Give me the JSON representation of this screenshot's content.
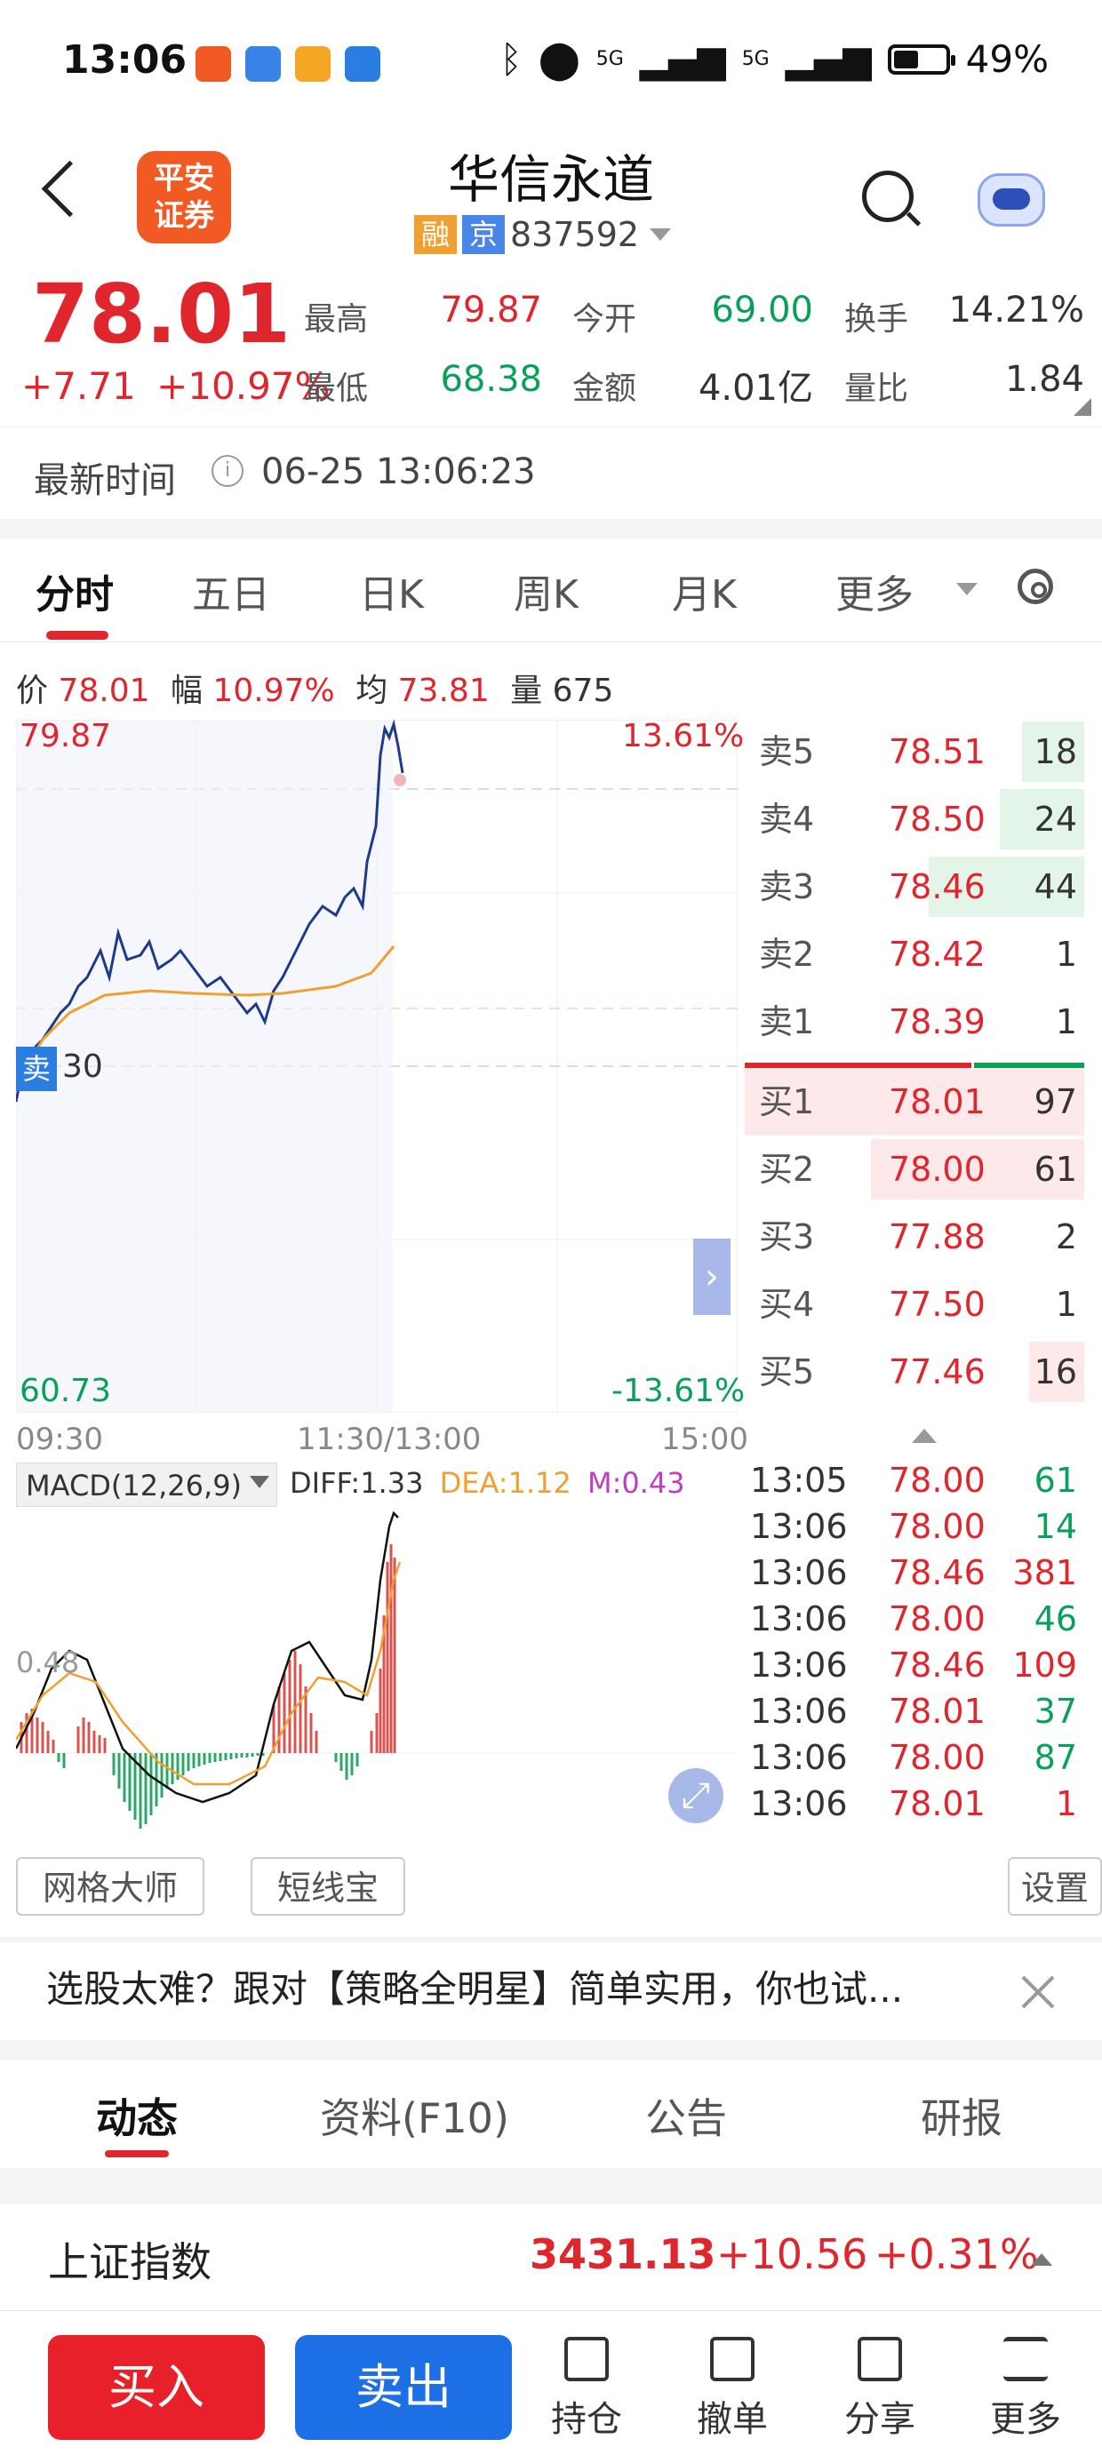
{
  "status_bar": {
    "time": "13:06",
    "signal1": "5G",
    "signal2": "5G",
    "battery": "49%",
    "battery_fraction": 0.49
  },
  "header": {
    "logo_line1": "平安",
    "logo_line2": "证券",
    "stock_name": "华信永道",
    "tag1": "融",
    "tag2": "京",
    "code": "837592"
  },
  "quote": {
    "price": "78.01",
    "change": "+7.71",
    "change_pct": "+10.97%",
    "high_label": "最高",
    "high": "79.87",
    "open_label": "今开",
    "open": "69.00",
    "turnover_label": "换手",
    "turnover": "14.21%",
    "low_label": "最低",
    "low": "68.38",
    "amount_label": "金额",
    "amount": "4.01亿",
    "vol_ratio_label": "量比",
    "vol_ratio": "1.84"
  },
  "update": {
    "label": "最新时间",
    "time": "06-25 13:06:23"
  },
  "kline_tabs": [
    "分时",
    "五日",
    "日K",
    "周K",
    "月K",
    "更多"
  ],
  "chart_info": {
    "price_label": "价",
    "price": "78.01",
    "range_label": "幅",
    "range": "10.97%",
    "avg_label": "均",
    "avg": "73.81",
    "vol_label": "量",
    "vol": "675"
  },
  "chart_labels": {
    "top_price": "79.87",
    "top_pct": "13.61%",
    "bottom_price": "60.73",
    "bottom_pct": "-13.61%",
    "mid_value": "30",
    "sell_tag": "卖",
    "t_start": "09:30",
    "t_mid": "11:30/13:00",
    "t_end": "15:00"
  },
  "order_book": {
    "sells": [
      {
        "name": "卖5",
        "price": "78.51",
        "vol": "18"
      },
      {
        "name": "卖4",
        "price": "78.50",
        "vol": "24"
      },
      {
        "name": "卖3",
        "price": "78.46",
        "vol": "44"
      },
      {
        "name": "卖2",
        "price": "78.42",
        "vol": "1"
      },
      {
        "name": "卖1",
        "price": "78.39",
        "vol": "1"
      }
    ],
    "buys": [
      {
        "name": "买1",
        "price": "78.01",
        "vol": "97"
      },
      {
        "name": "买2",
        "price": "78.00",
        "vol": "61"
      },
      {
        "name": "买3",
        "price": "77.88",
        "vol": "2"
      },
      {
        "name": "买4",
        "price": "77.50",
        "vol": "1"
      },
      {
        "name": "买5",
        "price": "77.46",
        "vol": "16"
      }
    ]
  },
  "macd": {
    "label": "MACD(12,26,9)",
    "diff": "DIFF:1.33",
    "dea": "DEA:1.12",
    "m": "M:0.43",
    "side_value": "0.48"
  },
  "ticks": [
    {
      "time": "13:05",
      "price": "78.00",
      "vol": "61",
      "dir": "g"
    },
    {
      "time": "13:06",
      "price": "78.00",
      "vol": "14",
      "dir": "g"
    },
    {
      "time": "13:06",
      "price": "78.46",
      "vol": "381",
      "dir": "r"
    },
    {
      "time": "13:06",
      "price": "78.00",
      "vol": "46",
      "dir": "g"
    },
    {
      "time": "13:06",
      "price": "78.46",
      "vol": "109",
      "dir": "r"
    },
    {
      "time": "13:06",
      "price": "78.01",
      "vol": "37",
      "dir": "g"
    },
    {
      "time": "13:06",
      "price": "78.00",
      "vol": "87",
      "dir": "g"
    },
    {
      "time": "13:06",
      "price": "78.01",
      "vol": "1",
      "dir": "r"
    }
  ],
  "tools": {
    "grid": "网格大师",
    "short": "短线宝",
    "settings": "设置"
  },
  "promo": "选股太难？跟对【策略全明星】简单实用，你也试...",
  "bottom_tabs": [
    "动态",
    "资料(F10)",
    "公告",
    "研报"
  ],
  "index": {
    "name": "上证指数",
    "value": "3431.13",
    "change": "+10.56",
    "pct": "+0.31%"
  },
  "actions": {
    "buy": "买入",
    "sell": "卖出",
    "hold": "持仓",
    "cancel": "撤单",
    "share": "分享",
    "more": "更多"
  },
  "colors": {
    "up": "#e0262d",
    "down": "#0aa05a",
    "price_line": "#1f3a8a",
    "avg_line": "#f0a030",
    "accent": "#e0262d",
    "buy_btn": "#e8202a",
    "sell_btn": "#1d6fe6"
  }
}
